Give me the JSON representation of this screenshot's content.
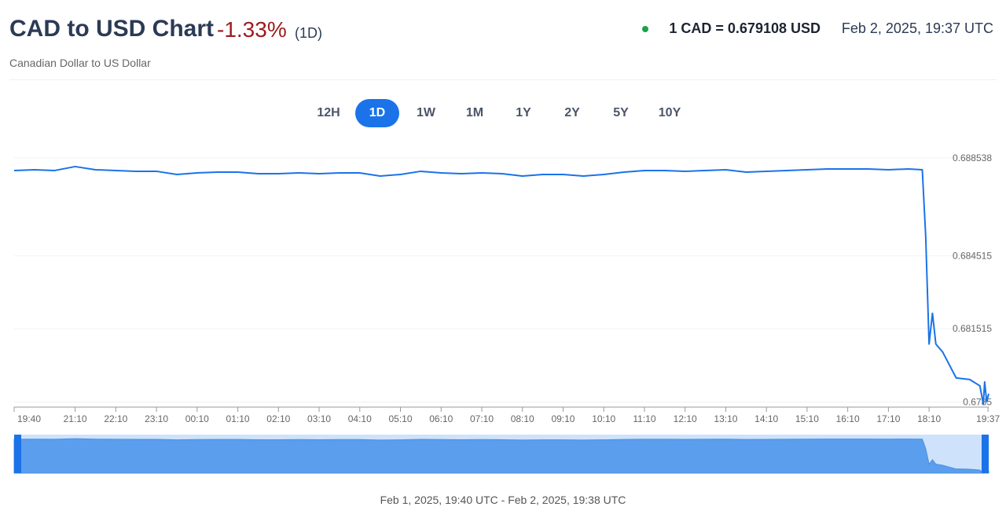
{
  "header": {
    "title": "CAD to USD Chart",
    "change": "-1.33%",
    "period": "(1D)",
    "subtitle": "Canadian Dollar to US Dollar",
    "rate": "1 CAD = 0.679108 USD",
    "timestamp": "Feb 2, 2025, 19:37 UTC"
  },
  "range_buttons": [
    "12H",
    "1D",
    "1W",
    "1M",
    "1Y",
    "2Y",
    "5Y",
    "10Y"
  ],
  "footer": {
    "range": "Feb 1, 2025, 19:40 UTC - Feb 2, 2025, 19:38 UTC"
  },
  "chart_data": {
    "type": "line",
    "color": "#1a73e8",
    "grid": true,
    "x": [
      "19:40",
      "20:10",
      "20:40",
      "21:10",
      "21:40",
      "22:10",
      "22:40",
      "23:10",
      "23:40",
      "00:10",
      "00:40",
      "01:10",
      "01:40",
      "02:10",
      "02:40",
      "03:10",
      "03:40",
      "04:10",
      "04:40",
      "05:10",
      "05:40",
      "06:10",
      "06:40",
      "07:10",
      "07:40",
      "08:10",
      "08:40",
      "09:10",
      "09:40",
      "10:10",
      "10:40",
      "11:10",
      "11:40",
      "12:10",
      "12:40",
      "13:10",
      "13:40",
      "14:10",
      "14:40",
      "15:10",
      "15:40",
      "16:10",
      "16:40",
      "17:10",
      "17:40",
      "18:00",
      "18:05",
      "18:10",
      "18:15",
      "18:20",
      "18:30",
      "18:50",
      "19:10",
      "19:25",
      "19:30",
      "19:32",
      "19:35",
      "19:38"
    ],
    "values": [
      0.688019,
      0.688051,
      0.688019,
      0.688181,
      0.688051,
      0.688019,
      0.687987,
      0.687987,
      0.687857,
      0.687922,
      0.687954,
      0.687954,
      0.687889,
      0.687889,
      0.687922,
      0.687889,
      0.687922,
      0.687922,
      0.687792,
      0.687857,
      0.687987,
      0.687922,
      0.687889,
      0.687922,
      0.687889,
      0.687792,
      0.687857,
      0.687857,
      0.687792,
      0.687857,
      0.687954,
      0.688019,
      0.688019,
      0.687987,
      0.688019,
      0.688051,
      0.687954,
      0.687987,
      0.688019,
      0.688051,
      0.688084,
      0.688084,
      0.688084,
      0.688051,
      0.688084,
      0.688051,
      0.685327,
      0.680883,
      0.682148,
      0.680883,
      0.680559,
      0.679489,
      0.679424,
      0.679164,
      0.678418,
      0.679327,
      0.678516,
      0.67884
    ],
    "xlim": [
      "19:40",
      "19:38"
    ],
    "xticks": [
      "19:40",
      "21:10",
      "22:10",
      "23:10",
      "00:10",
      "01:10",
      "02:10",
      "03:10",
      "04:10",
      "05:10",
      "06:10",
      "07:10",
      "08:10",
      "09:10",
      "10:10",
      "11:10",
      "12:10",
      "13:10",
      "14:10",
      "15:10",
      "16:10",
      "17:10",
      "18:10",
      "19:37"
    ],
    "ylim": [
      0.67829,
      0.68889
    ],
    "yticks": [
      0.688538,
      0.684515,
      0.681515,
      0.6785
    ]
  }
}
